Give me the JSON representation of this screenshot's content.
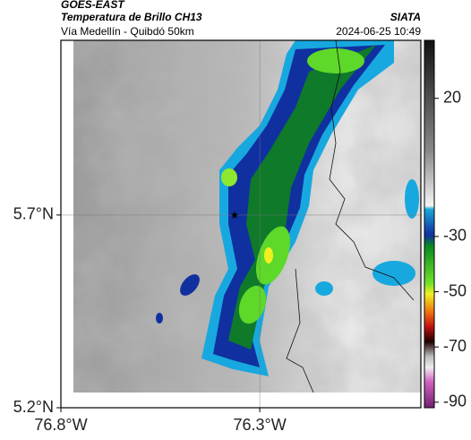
{
  "header": {
    "title": "GOES-EAST",
    "subtitle": "Temperatura de Brillo CH13",
    "source": "SIATA",
    "region": "Vía Medellín - Quibdó 50km",
    "timestamp": "2024-06-25 10:49"
  },
  "map": {
    "xlim": [
      -76.8,
      -75.895
    ],
    "ylim": [
      5.2,
      6.153
    ],
    "xticks": [
      {
        "value": -76.8,
        "label": "76.8°W"
      },
      {
        "value": -76.3,
        "label": "76.3°W"
      }
    ],
    "yticks": [
      {
        "value": 5.2,
        "label": "5.2°N"
      },
      {
        "value": 5.7,
        "label": "5.7°N"
      }
    ],
    "grid": true
  },
  "colorbar": {
    "lim": [
      -92,
      41
    ],
    "ticks": [
      20,
      -30,
      -50,
      -70,
      -90
    ]
  }
}
